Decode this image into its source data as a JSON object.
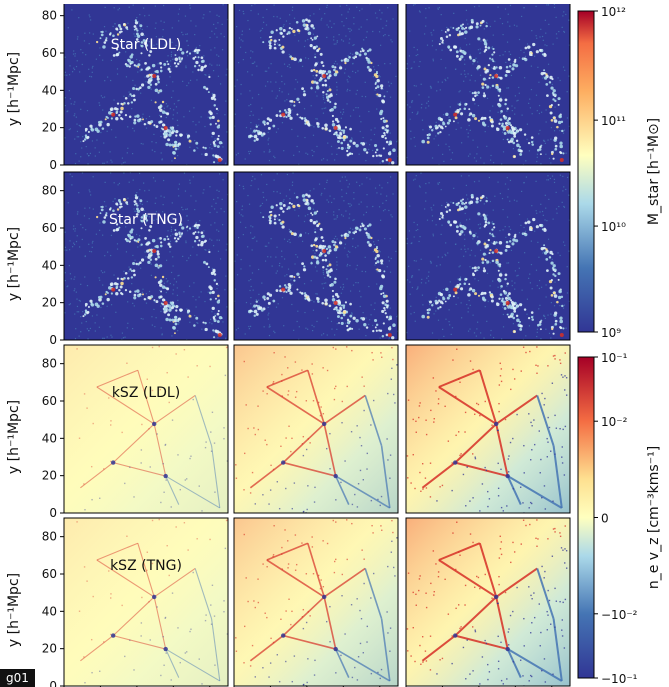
{
  "figure_label": "g01",
  "colors": {
    "star_bg": "#313695",
    "star_mid": "#4575b4",
    "star_light": "#abd9e9",
    "star_peak": "#fee090",
    "star_hot": "#d73027",
    "ksz_pos": "#d73027",
    "ksz_zero": "#ffffbf",
    "ksz_neg": "#4575b4",
    "ksz_deep": "#313695",
    "text_light": "#ffffff",
    "text_dark": "#111111"
  },
  "rows": [
    {
      "label": "Star (LDL)",
      "field": "star",
      "strength": [
        0.7,
        0.7,
        0.7
      ],
      "ylabel": "y [h⁻¹Mpc]"
    },
    {
      "label": "Star (TNG)",
      "field": "star",
      "strength": [
        0.7,
        0.7,
        0.7
      ],
      "ylabel": "y [h⁻¹Mpc]"
    },
    {
      "label": "kSZ (LDL)",
      "field": "ksz",
      "strength": [
        0.25,
        0.7,
        1.0
      ],
      "ylabel": "y [h⁻¹Mpc]"
    },
    {
      "label": "kSZ (TNG)",
      "field": "ksz",
      "strength": [
        0.25,
        0.7,
        1.0
      ],
      "ylabel": "y [h⁻¹Mpc]"
    }
  ],
  "colorbars": [
    {
      "name": "star-colorbar",
      "label": "M_star [h⁻¹M⊙]",
      "ticks": [
        "10¹²",
        "10¹¹",
        "10¹⁰",
        "10⁹"
      ]
    },
    {
      "name": "ksz-colorbar",
      "label": "n_e v_z [cm⁻³kms⁻¹]",
      "ticks": [
        "10⁻¹",
        "10⁻²",
        "0",
        "−10⁻²",
        "−10⁻¹"
      ]
    }
  ],
  "chart_data": {
    "type": "heatmap",
    "title": "",
    "panels_grid": {
      "rows": 4,
      "cols": 3
    },
    "row_labels": [
      "Star (LDL)",
      "Star (TNG)",
      "kSZ (LDL)",
      "kSZ (TNG)"
    ],
    "ylabel": "y [h⁻¹Mpc]",
    "yticks": [
      0,
      20,
      40,
      60,
      80
    ],
    "ylim": [
      0,
      90
    ],
    "xlim": [
      0,
      90
    ],
    "star_colorbar": {
      "label": "M_star [h⁻¹M⊙]",
      "scale": "log",
      "range": [
        1000000000.0,
        1000000000000.0
      ],
      "ticks": [
        "10⁹",
        "10¹⁰",
        "10¹¹",
        "10¹²"
      ]
    },
    "ksz_colorbar": {
      "label": "n_e v_z [cm⁻³kms⁻¹]",
      "scale": "symlog",
      "range": [
        -0.1,
        0.1
      ],
      "ticks": [
        "−10⁻¹",
        "−10⁻²",
        "0",
        "10⁻²",
        "10⁻¹"
      ]
    }
  }
}
